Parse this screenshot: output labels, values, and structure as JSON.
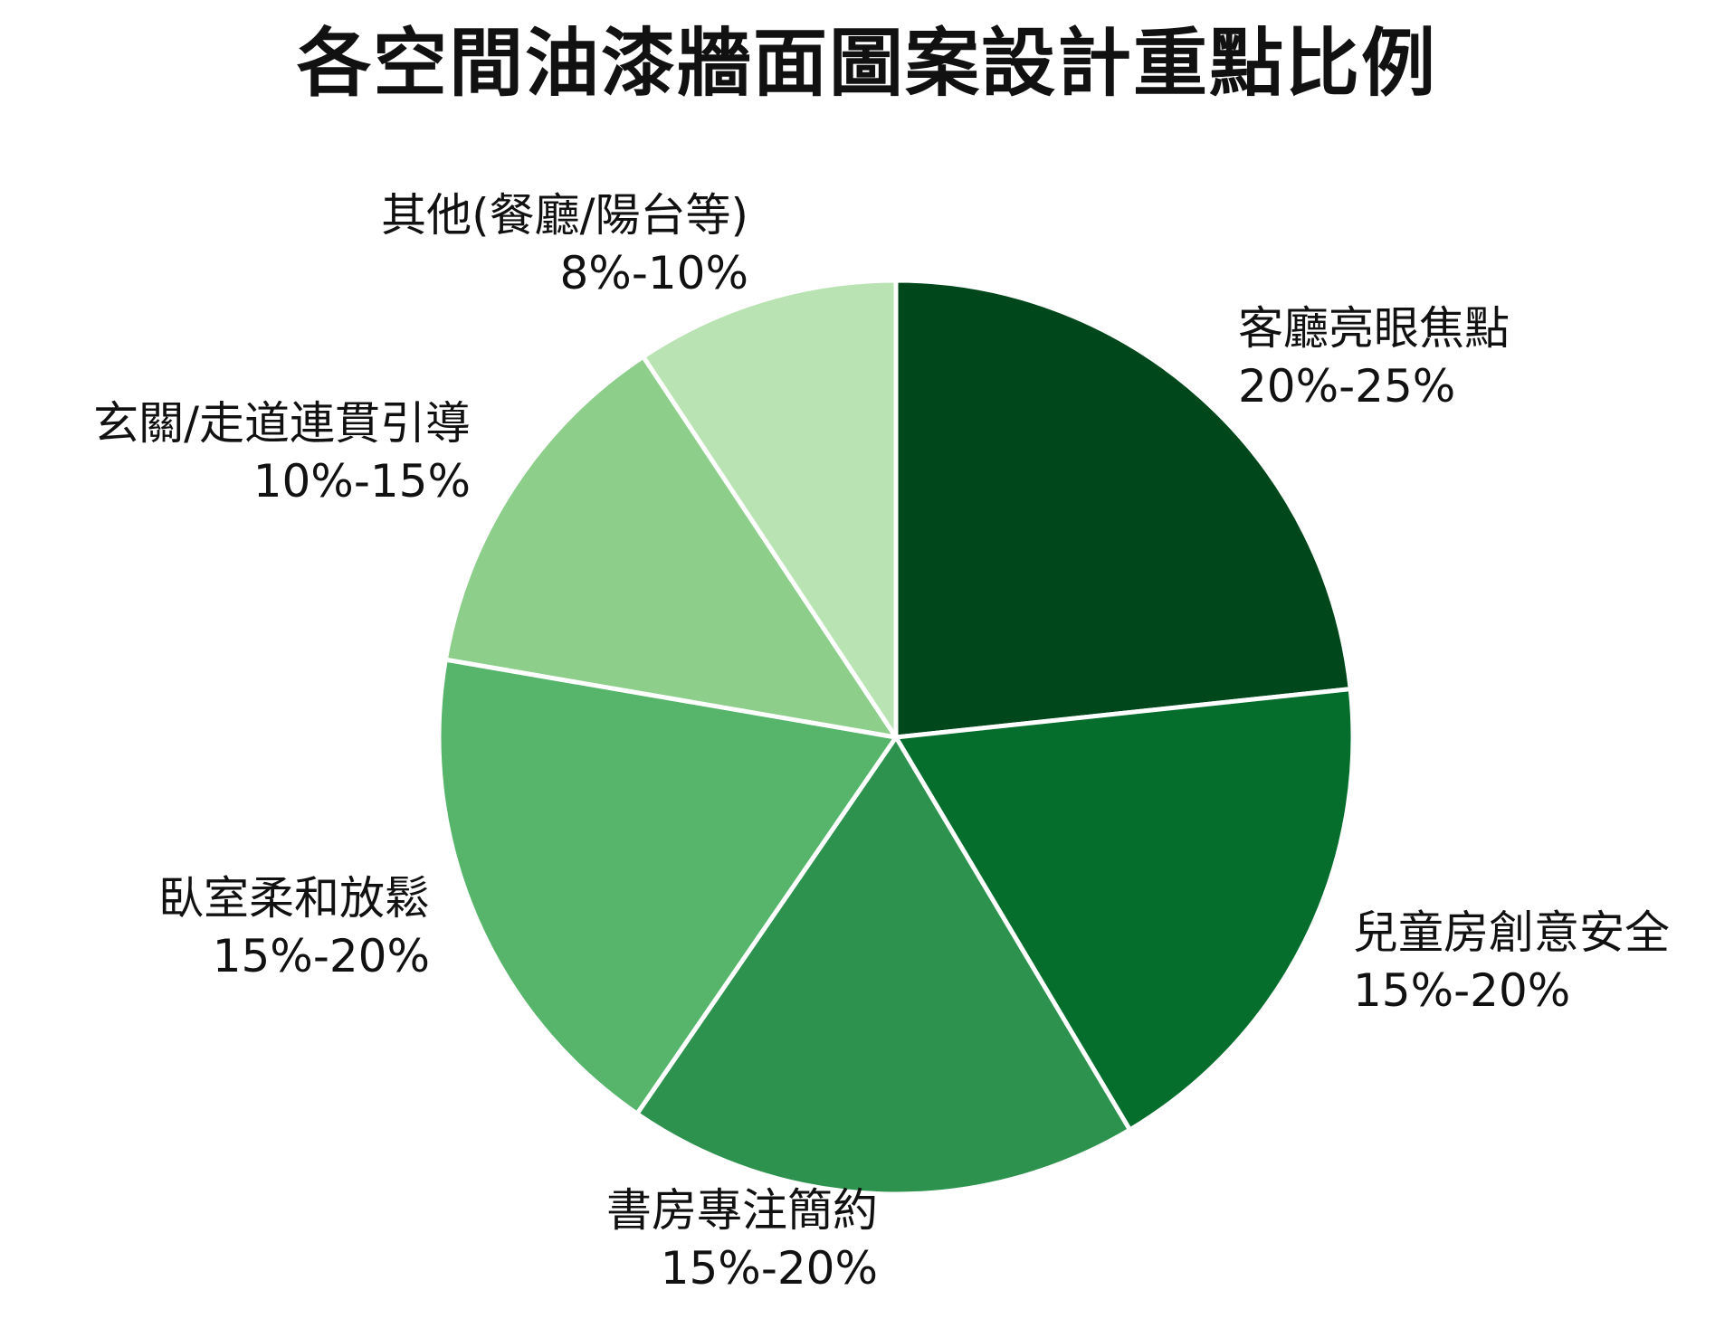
{
  "chart_data": {
    "type": "pie",
    "title": "各空間油漆牆面圖案設計重點比例",
    "start_angle": "top",
    "direction": "clockwise",
    "slices": [
      {
        "label": "客廳亮眼焦點",
        "range_text": "20%-25%",
        "value": 22.5,
        "color": "#00471b"
      },
      {
        "label": "兒童房創意安全",
        "range_text": "15%-20%",
        "value": 17.5,
        "color": "#056e2d"
      },
      {
        "label": "書房專注簡約",
        "range_text": "15%-20%",
        "value": 17.5,
        "color": "#2d924e"
      },
      {
        "label": "臥室柔和放鬆",
        "range_text": "15%-20%",
        "value": 17.5,
        "color": "#56b56b"
      },
      {
        "label": "玄關/走道連貫引導",
        "range_text": "10%-15%",
        "value": 12.5,
        "color": "#8dce8b"
      },
      {
        "label": "其他(餐廳/陽台等)",
        "range_text": "8%-10%",
        "value": 9,
        "color": "#b9e3b3"
      }
    ]
  }
}
